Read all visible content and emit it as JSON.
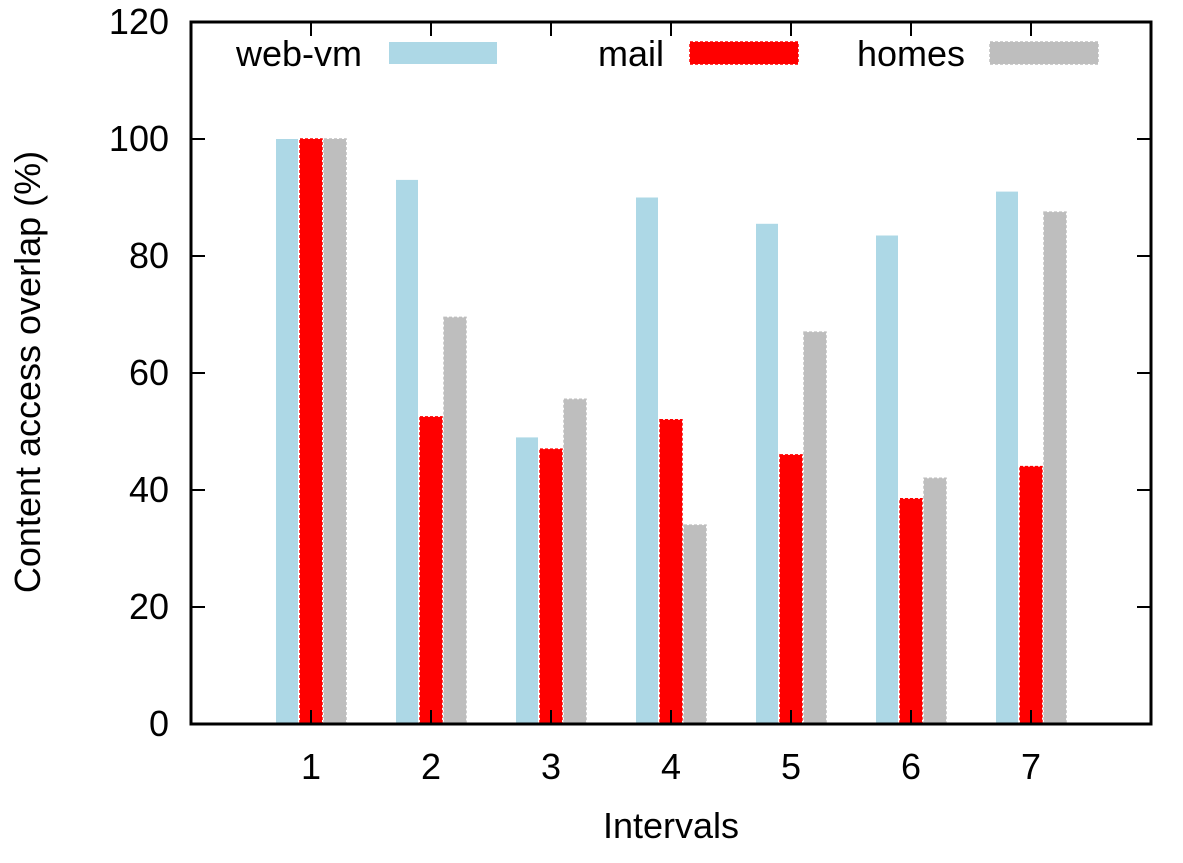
{
  "chart_data": {
    "type": "bar",
    "title": "",
    "xlabel": "Intervals",
    "ylabel": "Content access overlap (%)",
    "categories": [
      "1",
      "2",
      "3",
      "4",
      "5",
      "6",
      "7"
    ],
    "ylim": [
      0,
      120
    ],
    "yticks": [
      "0",
      "20",
      "40",
      "60",
      "80",
      "100",
      "120"
    ],
    "grid": false,
    "legend_position": "top",
    "series": [
      {
        "name": "web-vm",
        "color": "#add8e6",
        "values": [
          100,
          93,
          49,
          90,
          85.5,
          83.5,
          91
        ]
      },
      {
        "name": "mail",
        "color": "#ff0000",
        "values": [
          100,
          52.5,
          47,
          52,
          46,
          38.5,
          44
        ]
      },
      {
        "name": "homes",
        "color": "#bebebe",
        "values": [
          100,
          69.5,
          55.5,
          34,
          67,
          42,
          87.5
        ]
      }
    ]
  }
}
